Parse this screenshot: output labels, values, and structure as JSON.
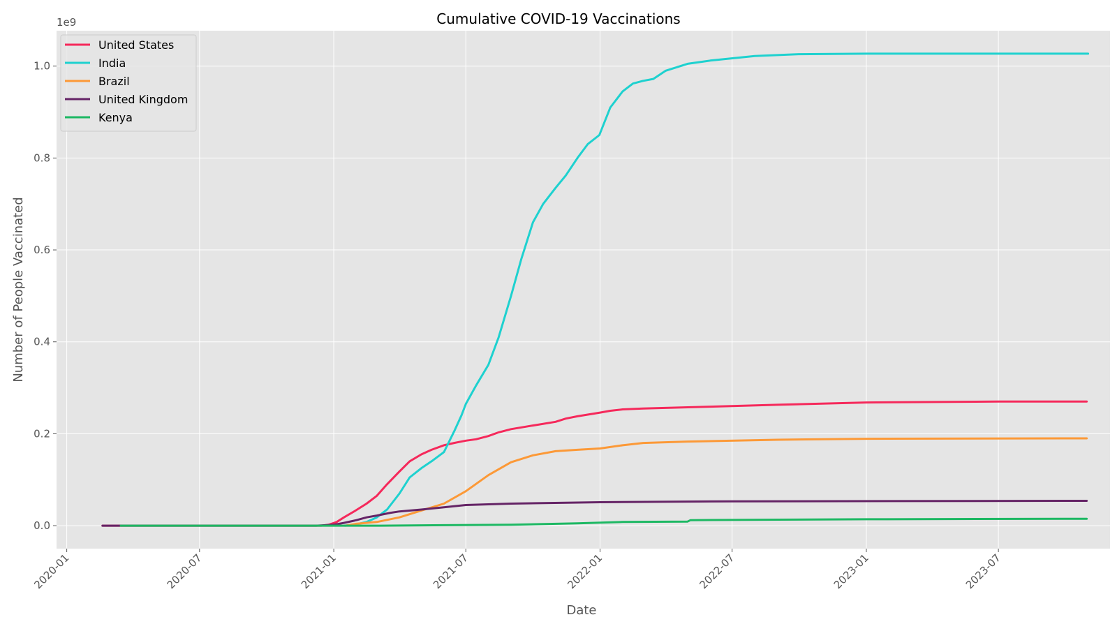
{
  "chart_data": {
    "type": "line",
    "title": "Cumulative COVID-19 Vaccinations",
    "xlabel": "Date",
    "ylabel": "Number of People Vaccinated",
    "y_offset_label": "1e9",
    "y_unit_multiplier": 1000000000,
    "xlim": [
      "2019-12-18",
      "2023-12-01"
    ],
    "ylim": [
      -0.05,
      1.077
    ],
    "x_ticks": [
      {
        "date": "2020-01-01",
        "label": "2020-01"
      },
      {
        "date": "2020-07-01",
        "label": "2020-07"
      },
      {
        "date": "2021-01-01",
        "label": "2021-01"
      },
      {
        "date": "2021-07-01",
        "label": "2021-07"
      },
      {
        "date": "2022-01-01",
        "label": "2022-01"
      },
      {
        "date": "2022-07-01",
        "label": "2022-07"
      },
      {
        "date": "2023-01-01",
        "label": "2023-01"
      },
      {
        "date": "2023-07-01",
        "label": "2023-07"
      }
    ],
    "y_ticks": [
      {
        "value": 0.0,
        "label": "0.0"
      },
      {
        "value": 0.2,
        "label": "0.2"
      },
      {
        "value": 0.4,
        "label": "0.4"
      },
      {
        "value": 0.6,
        "label": "0.6"
      },
      {
        "value": 0.8,
        "label": "0.8"
      },
      {
        "value": 1.0,
        "label": "1.0"
      }
    ],
    "grid": true,
    "legend_position": "upper-left",
    "series": [
      {
        "name": "United States",
        "color": "#f5295b",
        "points": [
          [
            "2020-02-19",
            0
          ],
          [
            "2020-12-15",
            0
          ],
          [
            "2020-12-25",
            0.002
          ],
          [
            "2021-01-05",
            0.008
          ],
          [
            "2021-01-15",
            0.018
          ],
          [
            "2021-01-30",
            0.032
          ],
          [
            "2021-02-15",
            0.048
          ],
          [
            "2021-03-01",
            0.065
          ],
          [
            "2021-03-15",
            0.09
          ],
          [
            "2021-04-01",
            0.118
          ],
          [
            "2021-04-15",
            0.14
          ],
          [
            "2021-05-01",
            0.155
          ],
          [
            "2021-05-15",
            0.165
          ],
          [
            "2021-06-01",
            0.175
          ],
          [
            "2021-06-15",
            0.18
          ],
          [
            "2021-07-01",
            0.185
          ],
          [
            "2021-07-15",
            0.188
          ],
          [
            "2021-08-01",
            0.195
          ],
          [
            "2021-08-15",
            0.203
          ],
          [
            "2021-09-01",
            0.21
          ],
          [
            "2021-10-01",
            0.218
          ],
          [
            "2021-11-01",
            0.226
          ],
          [
            "2021-11-15",
            0.233
          ],
          [
            "2021-12-01",
            0.238
          ],
          [
            "2022-01-01",
            0.246
          ],
          [
            "2022-01-15",
            0.25
          ],
          [
            "2022-02-01",
            0.253
          ],
          [
            "2022-03-01",
            0.255
          ],
          [
            "2022-06-01",
            0.259
          ],
          [
            "2022-09-01",
            0.263
          ],
          [
            "2023-01-01",
            0.268
          ],
          [
            "2023-07-01",
            0.27
          ],
          [
            "2023-10-30",
            0.27
          ]
        ]
      },
      {
        "name": "India",
        "color": "#1ed1cf",
        "points": [
          [
            "2021-01-16",
            0
          ],
          [
            "2021-02-01",
            0.003
          ],
          [
            "2021-02-15",
            0.008
          ],
          [
            "2021-03-01",
            0.018
          ],
          [
            "2021-03-15",
            0.035
          ],
          [
            "2021-04-01",
            0.07
          ],
          [
            "2021-04-15",
            0.105
          ],
          [
            "2021-05-01",
            0.125
          ],
          [
            "2021-05-15",
            0.14
          ],
          [
            "2021-06-01",
            0.16
          ],
          [
            "2021-06-15",
            0.205
          ],
          [
            "2021-06-25",
            0.24
          ],
          [
            "2021-07-01",
            0.265
          ],
          [
            "2021-07-15",
            0.305
          ],
          [
            "2021-08-01",
            0.35
          ],
          [
            "2021-08-15",
            0.41
          ],
          [
            "2021-09-01",
            0.5
          ],
          [
            "2021-09-15",
            0.58
          ],
          [
            "2021-10-01",
            0.66
          ],
          [
            "2021-10-15",
            0.7
          ],
          [
            "2021-11-01",
            0.735
          ],
          [
            "2021-11-15",
            0.762
          ],
          [
            "2021-12-01",
            0.8
          ],
          [
            "2021-12-15",
            0.83
          ],
          [
            "2021-12-31",
            0.85
          ],
          [
            "2022-01-15",
            0.91
          ],
          [
            "2022-02-01",
            0.945
          ],
          [
            "2022-02-15",
            0.962
          ],
          [
            "2022-03-01",
            0.968
          ],
          [
            "2022-03-15",
            0.972
          ],
          [
            "2022-04-01",
            0.99
          ],
          [
            "2022-05-01",
            1.005
          ],
          [
            "2022-06-01",
            1.012
          ],
          [
            "2022-08-01",
            1.022
          ],
          [
            "2022-10-01",
            1.026
          ],
          [
            "2023-01-01",
            1.027
          ],
          [
            "2023-11-01",
            1.027
          ]
        ]
      },
      {
        "name": "Brazil",
        "color": "#fc9937",
        "points": [
          [
            "2021-01-17",
            0
          ],
          [
            "2021-02-01",
            0.004
          ],
          [
            "2021-03-01",
            0.008
          ],
          [
            "2021-04-01",
            0.018
          ],
          [
            "2021-05-01",
            0.033
          ],
          [
            "2021-06-01",
            0.048
          ],
          [
            "2021-07-01",
            0.075
          ],
          [
            "2021-08-01",
            0.11
          ],
          [
            "2021-09-01",
            0.138
          ],
          [
            "2021-10-01",
            0.153
          ],
          [
            "2021-11-01",
            0.162
          ],
          [
            "2021-12-01",
            0.165
          ],
          [
            "2022-01-01",
            0.168
          ],
          [
            "2022-02-01",
            0.175
          ],
          [
            "2022-03-01",
            0.18
          ],
          [
            "2022-05-01",
            0.183
          ],
          [
            "2022-09-01",
            0.187
          ],
          [
            "2023-01-01",
            0.189
          ],
          [
            "2023-10-30",
            0.19
          ]
        ]
      },
      {
        "name": "United Kingdom",
        "color": "#652466",
        "points": [
          [
            "2020-02-19",
            0
          ],
          [
            "2020-12-08",
            0
          ],
          [
            "2021-01-01",
            0.002
          ],
          [
            "2021-01-15",
            0.006
          ],
          [
            "2021-02-01",
            0.012
          ],
          [
            "2021-02-15",
            0.018
          ],
          [
            "2021-03-01",
            0.022
          ],
          [
            "2021-03-20",
            0.028
          ],
          [
            "2021-04-01",
            0.031
          ],
          [
            "2021-05-01",
            0.035
          ],
          [
            "2021-06-01",
            0.04
          ],
          [
            "2021-07-01",
            0.045
          ],
          [
            "2021-09-01",
            0.048
          ],
          [
            "2022-01-01",
            0.051
          ],
          [
            "2022-07-01",
            0.053
          ],
          [
            "2023-10-30",
            0.054
          ]
        ]
      },
      {
        "name": "Kenya",
        "color": "#1db863",
        "points": [
          [
            "2020-03-15",
            0
          ],
          [
            "2021-03-05",
            0
          ],
          [
            "2021-06-01",
            0.001
          ],
          [
            "2021-09-01",
            0.002
          ],
          [
            "2021-12-01",
            0.005
          ],
          [
            "2022-02-01",
            0.008
          ],
          [
            "2022-05-01",
            0.009
          ],
          [
            "2022-05-05",
            0.012
          ],
          [
            "2022-09-01",
            0.013
          ],
          [
            "2023-01-01",
            0.014
          ],
          [
            "2023-10-30",
            0.015
          ]
        ]
      }
    ]
  }
}
